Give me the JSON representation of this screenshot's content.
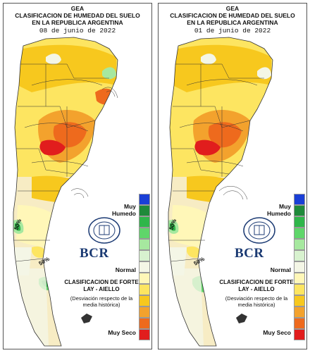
{
  "panels": [
    {
      "org": "GEA",
      "title_line1": "CLASIFICACION DE HUMEDAD DEL SUELO",
      "title_line2": "EN LA REPUBLICA ARGENTINA",
      "date": "08 de junio de 2022"
    },
    {
      "org": "GEA",
      "title_line1": "CLASIFICACION DE HUMEDAD DEL SUELO",
      "title_line2": "EN LA REPUBLICA ARGENTINA",
      "date": "01 de junio de 2022"
    }
  ],
  "legend": {
    "wet_label": "Muy Humedo",
    "normal_label": "Normal",
    "dry_label": "Muy Seco",
    "title": "CLASIFICACION DE FORTE LAY - AIELLO",
    "subtitle": "(Desviación respecto de la media histórica)",
    "brand": "BCR",
    "colors": [
      "#1a3fd6",
      "#1f8a3a",
      "#2fb64a",
      "#5fd66a",
      "#a6e89f",
      "#d8f2cf",
      "#f4f6e6",
      "#fff7b8",
      "#fde561",
      "#f7c81e",
      "#f3a22d",
      "#ee6a1d",
      "#e11d1d"
    ]
  },
  "map_labels": [
    "50%",
    "50%",
    "50%",
    "50%"
  ]
}
